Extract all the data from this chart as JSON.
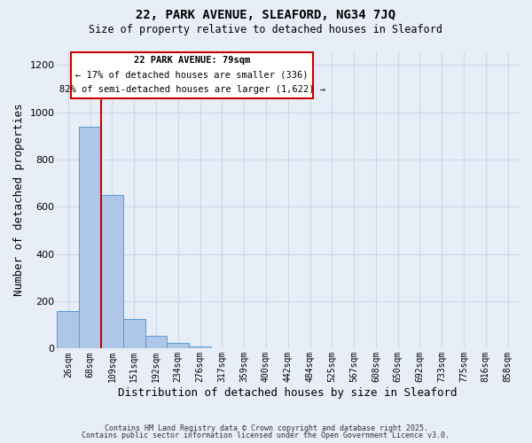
{
  "title": "22, PARK AVENUE, SLEAFORD, NG34 7JQ",
  "subtitle": "Size of property relative to detached houses in Sleaford",
  "xlabel": "Distribution of detached houses by size in Sleaford",
  "ylabel": "Number of detached properties",
  "bar_labels": [
    "26sqm",
    "68sqm",
    "109sqm",
    "151sqm",
    "192sqm",
    "234sqm",
    "276sqm",
    "317sqm",
    "359sqm",
    "400sqm",
    "442sqm",
    "484sqm",
    "525sqm",
    "567sqm",
    "608sqm",
    "650sqm",
    "692sqm",
    "733sqm",
    "775sqm",
    "816sqm",
    "858sqm"
  ],
  "bar_values": [
    160,
    940,
    650,
    125,
    55,
    25,
    10,
    0,
    0,
    0,
    0,
    0,
    0,
    0,
    0,
    0,
    0,
    0,
    0,
    0,
    0
  ],
  "bar_color": "#aec6e8",
  "bar_edgecolor": "#5b9bd5",
  "grid_color": "#ccd8e8",
  "background_color": "#e8eef8",
  "vline_x": 1.5,
  "vline_color": "#cc0000",
  "annotation_title": "22 PARK AVENUE: 79sqm",
  "annotation_line1": "← 17% of detached houses are smaller (336)",
  "annotation_line2": "82% of semi-detached houses are larger (1,622) →",
  "annotation_box_color": "#ffffff",
  "annotation_box_edgecolor": "#cc0000",
  "ylim": [
    0,
    1260
  ],
  "yticks": [
    0,
    200,
    400,
    600,
    800,
    1000,
    1200
  ],
  "footnote1": "Contains HM Land Registry data © Crown copyright and database right 2025.",
  "footnote2": "Contains public sector information licensed under the Open Government Licence v3.0."
}
